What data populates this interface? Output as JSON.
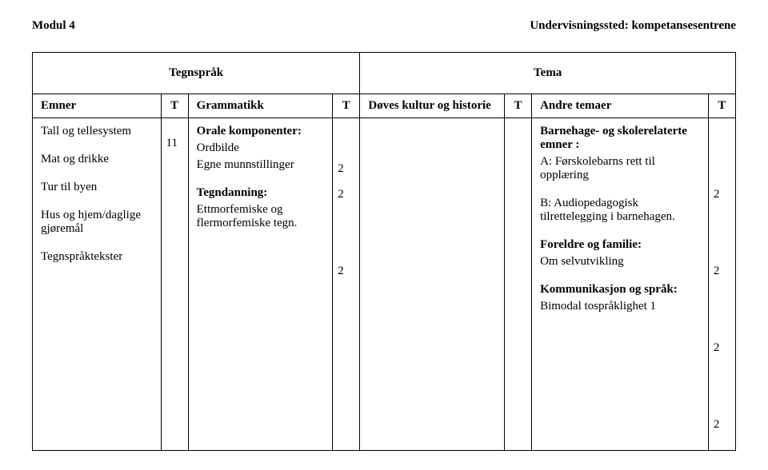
{
  "header": {
    "left": "Modul 4",
    "right": "Undervisningssted: kompetansesentrene"
  },
  "section": {
    "left": "Tegnspråk",
    "right": "Tema"
  },
  "columns": {
    "c1": "Emner",
    "c2": "T",
    "c3": "Grammatikk",
    "c4": "T",
    "c5": "Døves kultur og historie",
    "c6": "T",
    "c7": "Andre temaer",
    "c8": "T"
  },
  "emner": {
    "l1": "Tall og tellesystem",
    "l2": "Mat og drikke",
    "l3": "Tur til byen",
    "l4": "Hus og hjem/daglige gjøremål",
    "l5": "Tegnspråktekster"
  },
  "t1": "11",
  "grammatikk": {
    "h1": "Orale komponenter:",
    "l1": "Ordbilde",
    "l2": "Egne munnstillinger",
    "h2": "Tegndanning:",
    "l3": "Ettmorfemiske og flermorfemiske tegn."
  },
  "t2": {
    "v1": "2",
    "v2": "2",
    "v3": "2"
  },
  "andre": {
    "h1": "Barnehage- og skolerelaterte emner :",
    "l1": "A: Førskolebarns rett til opplæring",
    "l2": "B: Audiopedagogisk tilrettelegging i barnehagen.",
    "h2": "Foreldre og familie:",
    "l3": "Om selvutvikling",
    "h3": "Kommunikasjon og språk:",
    "l4": "Bimodal tospråklighet 1"
  },
  "t4": {
    "v1": "2",
    "v2": "2",
    "v3": "2",
    "v4": "2"
  }
}
